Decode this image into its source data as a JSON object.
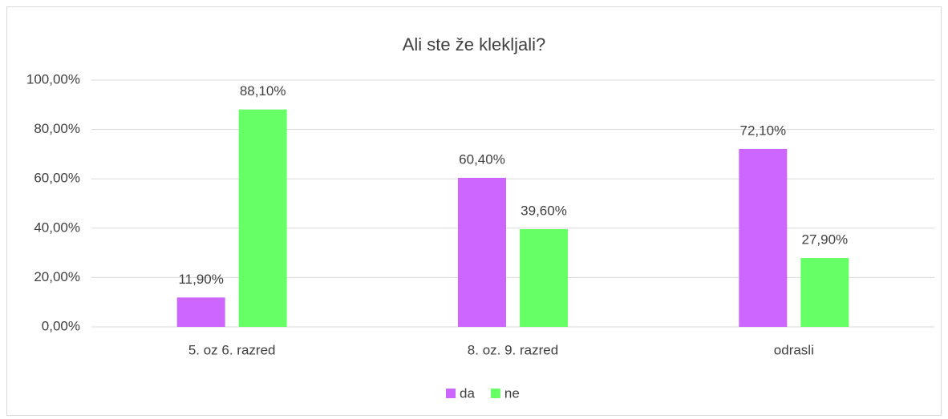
{
  "chart_data": {
    "type": "bar",
    "title": "Ali ste že klekljali?",
    "categories": [
      "5. oz 6. razred",
      "8. oz. 9. razred",
      "odrasli"
    ],
    "series": [
      {
        "name": "da",
        "color": "#cc66ff",
        "values": [
          11.9,
          60.4,
          72.1
        ],
        "value_labels": [
          "11,90%",
          "60,40%",
          "72,10%"
        ]
      },
      {
        "name": "ne",
        "color": "#66ff66",
        "values": [
          88.1,
          39.6,
          27.9
        ],
        "value_labels": [
          "88,10%",
          "39,60%",
          "27,90%"
        ]
      }
    ],
    "ylim": [
      0,
      100
    ],
    "yticks": [
      {
        "value": 0,
        "label": "0,00%"
      },
      {
        "value": 20,
        "label": "20,00%"
      },
      {
        "value": 40,
        "label": "40,00%"
      },
      {
        "value": 60,
        "label": "60,00%"
      },
      {
        "value": 80,
        "label": "80,00%"
      },
      {
        "value": 100,
        "label": "100,00%"
      }
    ],
    "grid": true,
    "legend": "bottom"
  }
}
